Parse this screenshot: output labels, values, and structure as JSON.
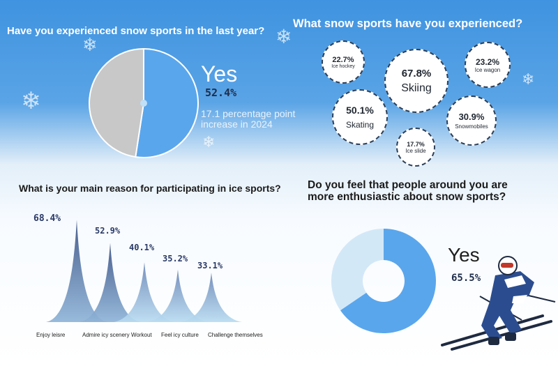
{
  "colors": {
    "pie_blue": "#5aa6ec",
    "pie_grey": "#c8c8c8",
    "dark_text": "#1f2630",
    "ice_dark": "#3b5285",
    "ice_light": "#b9dcf2"
  },
  "section1": {
    "title": "Have you experienced snow sports in the last year?",
    "yes_label": "Yes",
    "yes_value": "52.4%",
    "note": "17.1 percentage point increase in 2024"
  },
  "section2": {
    "title": "What snow sports have you experienced?",
    "bubbles": [
      {
        "value": "22.7%",
        "label": "Ice hockey"
      },
      {
        "value": "67.8%",
        "label": "Skiing"
      },
      {
        "value": "23.2%",
        "label": "Ice wagon"
      },
      {
        "value": "50.1%",
        "label": "Skating"
      },
      {
        "value": "30.9%",
        "label": "Snowmobiles"
      },
      {
        "value": "17.7%",
        "label": "Ice slide"
      }
    ]
  },
  "section3": {
    "title": "What is your main reason for participating in ice sports?",
    "labels": [
      "Enjoy leisre",
      "Admire icy scenery",
      "Workout",
      "Feel icy culture",
      "Challenge themselves"
    ],
    "values_text": [
      "68.4%",
      "52.9%",
      "40.1%",
      "35.2%",
      "33.1%"
    ]
  },
  "section4": {
    "title_line1": "Do you feel that people around you are",
    "title_line2": "more enthusiastic about snow sports?",
    "yes_label": "Yes",
    "yes_value": "65.5%"
  },
  "chart_data": [
    {
      "type": "pie",
      "title": "Have you experienced snow sports in the last year?",
      "labels": [
        "Yes",
        ""
      ],
      "values": [
        52.4,
        47.6
      ]
    },
    {
      "type": "bubble",
      "title": "What snow sports have you experienced?",
      "categories": [
        "Ice hockey",
        "Skiing",
        "Ice wagon",
        "Skating",
        "Snowmobiles",
        "Ice slide"
      ],
      "values": [
        22.7,
        67.8,
        23.2,
        50.1,
        30.9,
        17.7
      ]
    },
    {
      "type": "bar",
      "title": "What is your main reason for participating in ice sports?",
      "categories": [
        "Enjoy leisre",
        "Admire icy scenery",
        "Workout",
        "Feel icy culture",
        "Challenge themselves"
      ],
      "values": [
        68.4,
        52.9,
        40.1,
        35.2,
        33.1
      ]
    },
    {
      "type": "pie",
      "title": "Do you feel that people around you are more enthusiastic about snow sports?",
      "labels": [
        "Yes",
        ""
      ],
      "values": [
        65.5,
        34.5
      ]
    }
  ]
}
